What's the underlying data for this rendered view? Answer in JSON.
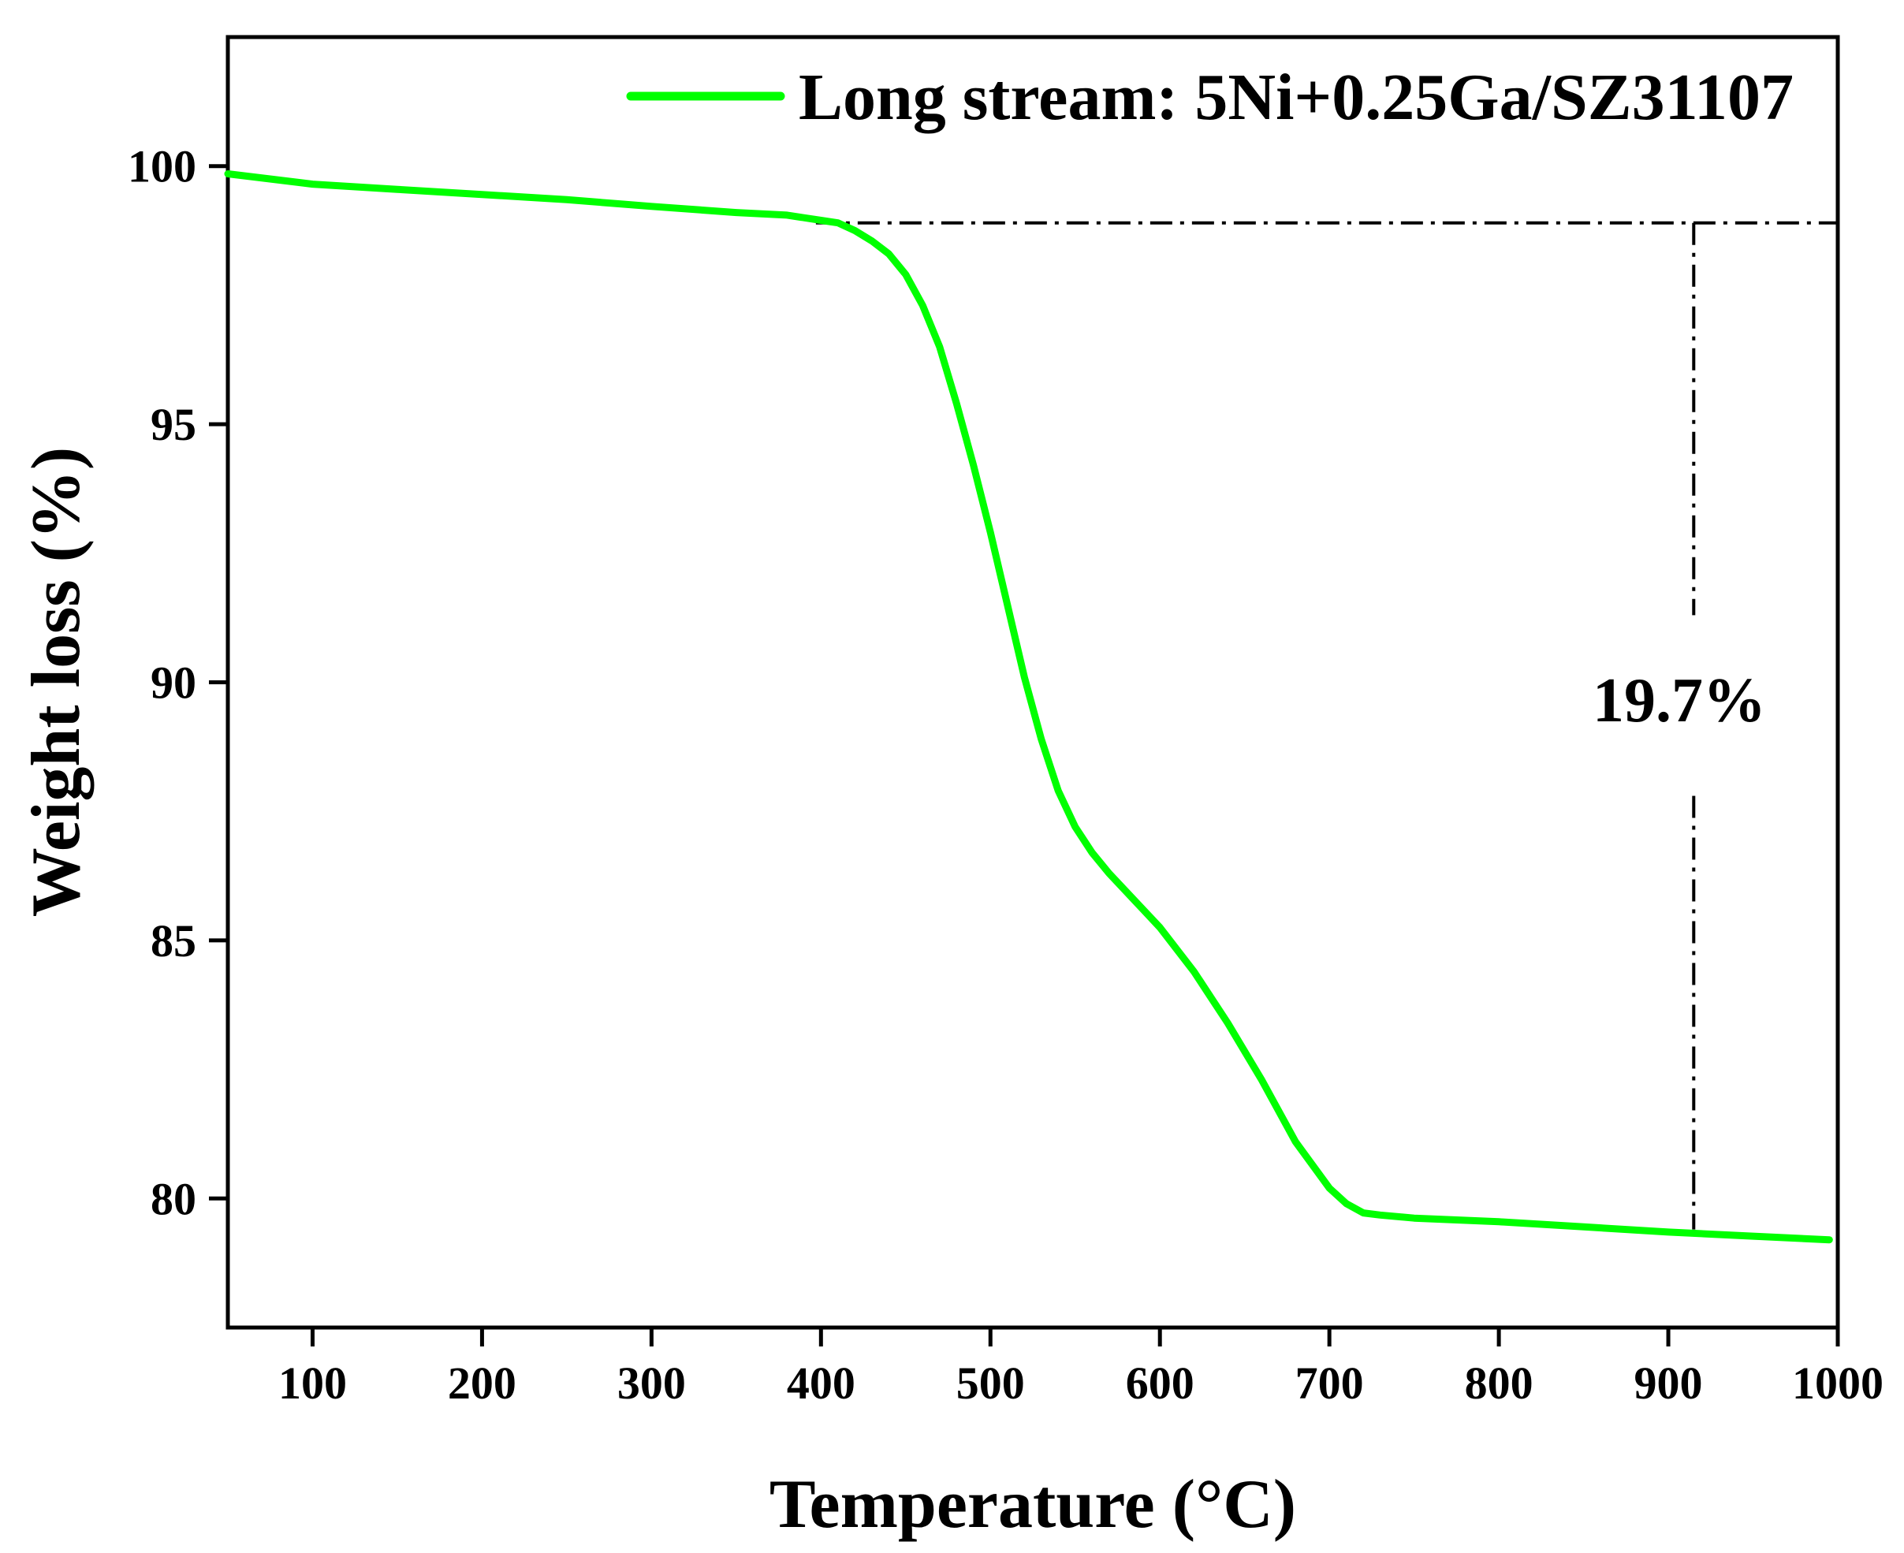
{
  "chart_data": {
    "type": "line",
    "title": "",
    "xlabel": "Temperature (°C)",
    "ylabel": "Weight loss (%)",
    "xlim": [
      50,
      1000
    ],
    "ylim": [
      77.5,
      102.5
    ],
    "xticks": [
      100,
      200,
      300,
      400,
      500,
      600,
      700,
      800,
      900,
      1000
    ],
    "yticks": [
      80,
      85,
      90,
      95,
      100
    ],
    "grid": false,
    "legend_position": "top-right",
    "series": [
      {
        "name": "Long stream: 5Ni+0.25Ga/SZ31107",
        "color": "#00ff00",
        "x": [
          50,
          100,
          150,
          200,
          250,
          300,
          350,
          380,
          400,
          410,
          420,
          430,
          440,
          450,
          460,
          470,
          480,
          490,
          500,
          510,
          520,
          530,
          540,
          550,
          560,
          570,
          580,
          590,
          600,
          620,
          640,
          660,
          680,
          700,
          710,
          720,
          730,
          750,
          800,
          850,
          900,
          950,
          995
        ],
        "y": [
          99.85,
          99.65,
          99.55,
          99.45,
          99.35,
          99.22,
          99.1,
          99.05,
          98.95,
          98.9,
          98.75,
          98.55,
          98.3,
          97.9,
          97.3,
          96.5,
          95.4,
          94.2,
          92.9,
          91.5,
          90.1,
          88.9,
          87.9,
          87.2,
          86.7,
          86.3,
          85.95,
          85.6,
          85.25,
          84.4,
          83.4,
          82.3,
          81.1,
          80.2,
          79.9,
          79.72,
          79.68,
          79.62,
          79.55,
          79.45,
          79.35,
          79.27,
          79.2
        ]
      }
    ],
    "annotations": [
      {
        "text": "19.7%",
        "x": 915,
        "y": 89.5
      }
    ],
    "reference_lines": [
      {
        "type": "horizontal",
        "style": "dash-dot",
        "y": 98.9,
        "x_from": 397,
        "x_to": 1000
      },
      {
        "type": "vertical",
        "style": "dash-dot",
        "x": 915,
        "y_from": 98.9,
        "y_to": 91.3
      },
      {
        "type": "vertical",
        "style": "dash-dot",
        "x": 915,
        "y_from": 87.8,
        "y_to": 79.4
      }
    ]
  },
  "colors": {
    "axis": "#000000",
    "background": "#ffffff"
  }
}
